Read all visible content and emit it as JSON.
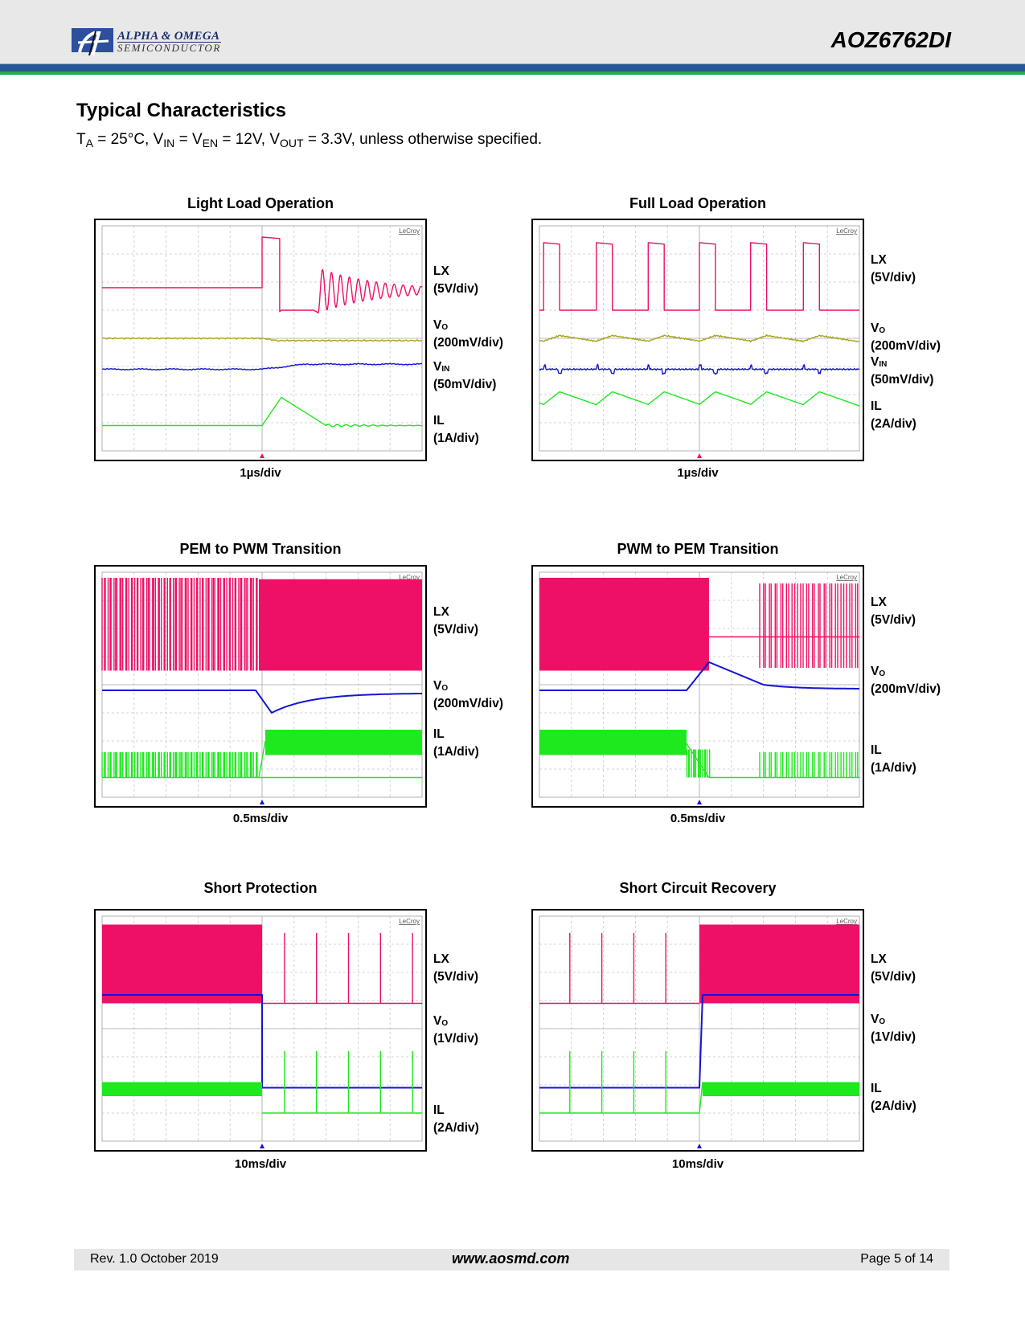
{
  "header": {
    "logo_line1": "ALPHA & OMEGA",
    "logo_line2": "SEMICONDUCTOR",
    "part_number": "AOZ6762DI",
    "colors": {
      "band_blue": "#25579a",
      "band_green": "#2aa84a"
    }
  },
  "section": {
    "title": "Typical Characteristics",
    "conditions": {
      "ta": "T",
      "ta_sub": "A",
      "ta_val": " = 25°C, V",
      "vin_sub": "IN",
      "ven": " = V",
      "ven_sub": "EN",
      "ven_val": " = 12V, V",
      "vout_sub": "OUT",
      "rest": " = 3.3V, unless otherwise specified."
    }
  },
  "scope_brand": "LeCroy",
  "trace_colors": {
    "LX": "#ee1067",
    "VO_yellow": "#a9a21c",
    "blue": "#1414d4",
    "IL": "#1ee81e"
  },
  "charts": [
    {
      "title": "Light Load Operation",
      "timebase": "1µs/div",
      "labels": [
        {
          "name": "LX",
          "sub": "",
          "scale": "(5V/div)"
        },
        {
          "name": "V",
          "sub": "O",
          "scale": "(200mV/div)"
        },
        {
          "name": "V",
          "sub": "IN",
          "scale": "(50mV/div)"
        },
        {
          "name": "IL",
          "sub": "",
          "scale": "(1A/div)"
        }
      ]
    },
    {
      "title": "Full Load Operation",
      "timebase": "1µs/div",
      "labels": [
        {
          "name": "LX",
          "sub": "",
          "scale": "(5V/div)"
        },
        {
          "name": "V",
          "sub": "O",
          "scale": "(200mV/div)"
        },
        {
          "name": "V",
          "sub": "IN",
          "scale": "(50mV/div)"
        },
        {
          "name": "IL",
          "sub": "",
          "scale": "(2A/div)"
        }
      ]
    },
    {
      "title": "PEM to PWM Transition",
      "timebase": "0.5ms/div",
      "labels": [
        {
          "name": "LX",
          "sub": "",
          "scale": "(5V/div)"
        },
        {
          "name": "V",
          "sub": "O",
          "scale": "(200mV/div)"
        },
        {
          "name": "IL",
          "sub": "",
          "scale": "(1A/div)"
        }
      ]
    },
    {
      "title": "PWM to PEM Transition",
      "timebase": "0.5ms/div",
      "labels": [
        {
          "name": "LX",
          "sub": "",
          "scale": "(5V/div)"
        },
        {
          "name": "V",
          "sub": "O",
          "scale": "(200mV/div)"
        },
        {
          "name": "IL",
          "sub": "",
          "scale": "(1A/div)"
        }
      ]
    },
    {
      "title": "Short Protection",
      "timebase": "10ms/div",
      "labels": [
        {
          "name": "LX",
          "sub": "",
          "scale": "(5V/div)"
        },
        {
          "name": "V",
          "sub": "O",
          "scale": "(1V/div)"
        },
        {
          "name": "IL",
          "sub": "",
          "scale": "(2A/div)"
        }
      ]
    },
    {
      "title": "Short Circuit Recovery",
      "timebase": "10ms/div",
      "labels": [
        {
          "name": "LX",
          "sub": "",
          "scale": "(5V/div)"
        },
        {
          "name": "V",
          "sub": "O",
          "scale": "(1V/div)"
        },
        {
          "name": "IL",
          "sub": "",
          "scale": "(2A/div)"
        }
      ]
    }
  ],
  "footer": {
    "revision": "Rev. 1.0 October 2019",
    "url": "www.aosmd.com",
    "page": "Page 5 of 14"
  }
}
